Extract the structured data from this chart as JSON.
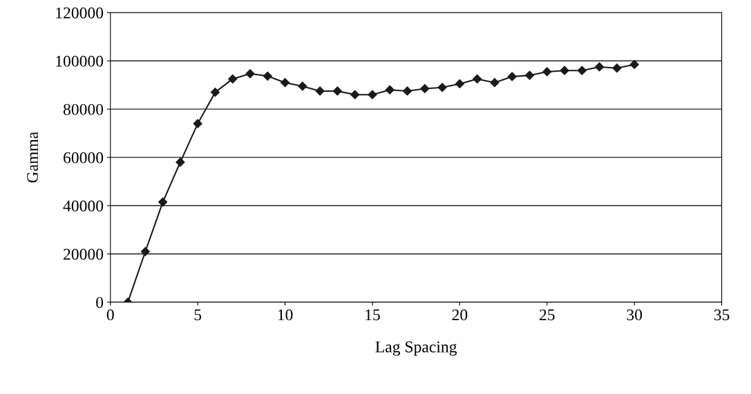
{
  "chart_data": {
    "type": "line",
    "xlabel": "Lag Spacing",
    "ylabel": "Gamma",
    "x": [
      1,
      2,
      3,
      4,
      5,
      6,
      7,
      8,
      9,
      10,
      11,
      12,
      13,
      14,
      15,
      16,
      17,
      18,
      19,
      20,
      21,
      22,
      23,
      24,
      25,
      26,
      27,
      28,
      29,
      30
    ],
    "series": [
      {
        "color": "#1a1a1a",
        "values": [
          0,
          21000,
          41500,
          58000,
          74000,
          87000,
          92500,
          94700,
          93700,
          91000,
          89500,
          87500,
          87500,
          86000,
          86000,
          88000,
          87500,
          88500,
          89000,
          90500,
          92500,
          91000,
          93500,
          94000,
          95500,
          96000,
          96000,
          97500,
          97000,
          98500
        ]
      }
    ],
    "xlim": [
      0,
      35
    ],
    "xticks": [
      0,
      5,
      10,
      15,
      20,
      25,
      30,
      35
    ],
    "ylim": [
      0,
      120000
    ],
    "yticks": [
      0,
      20000,
      40000,
      60000,
      80000,
      100000,
      120000
    ],
    "grid": "y",
    "marker": "diamond",
    "line_style": "solid"
  }
}
